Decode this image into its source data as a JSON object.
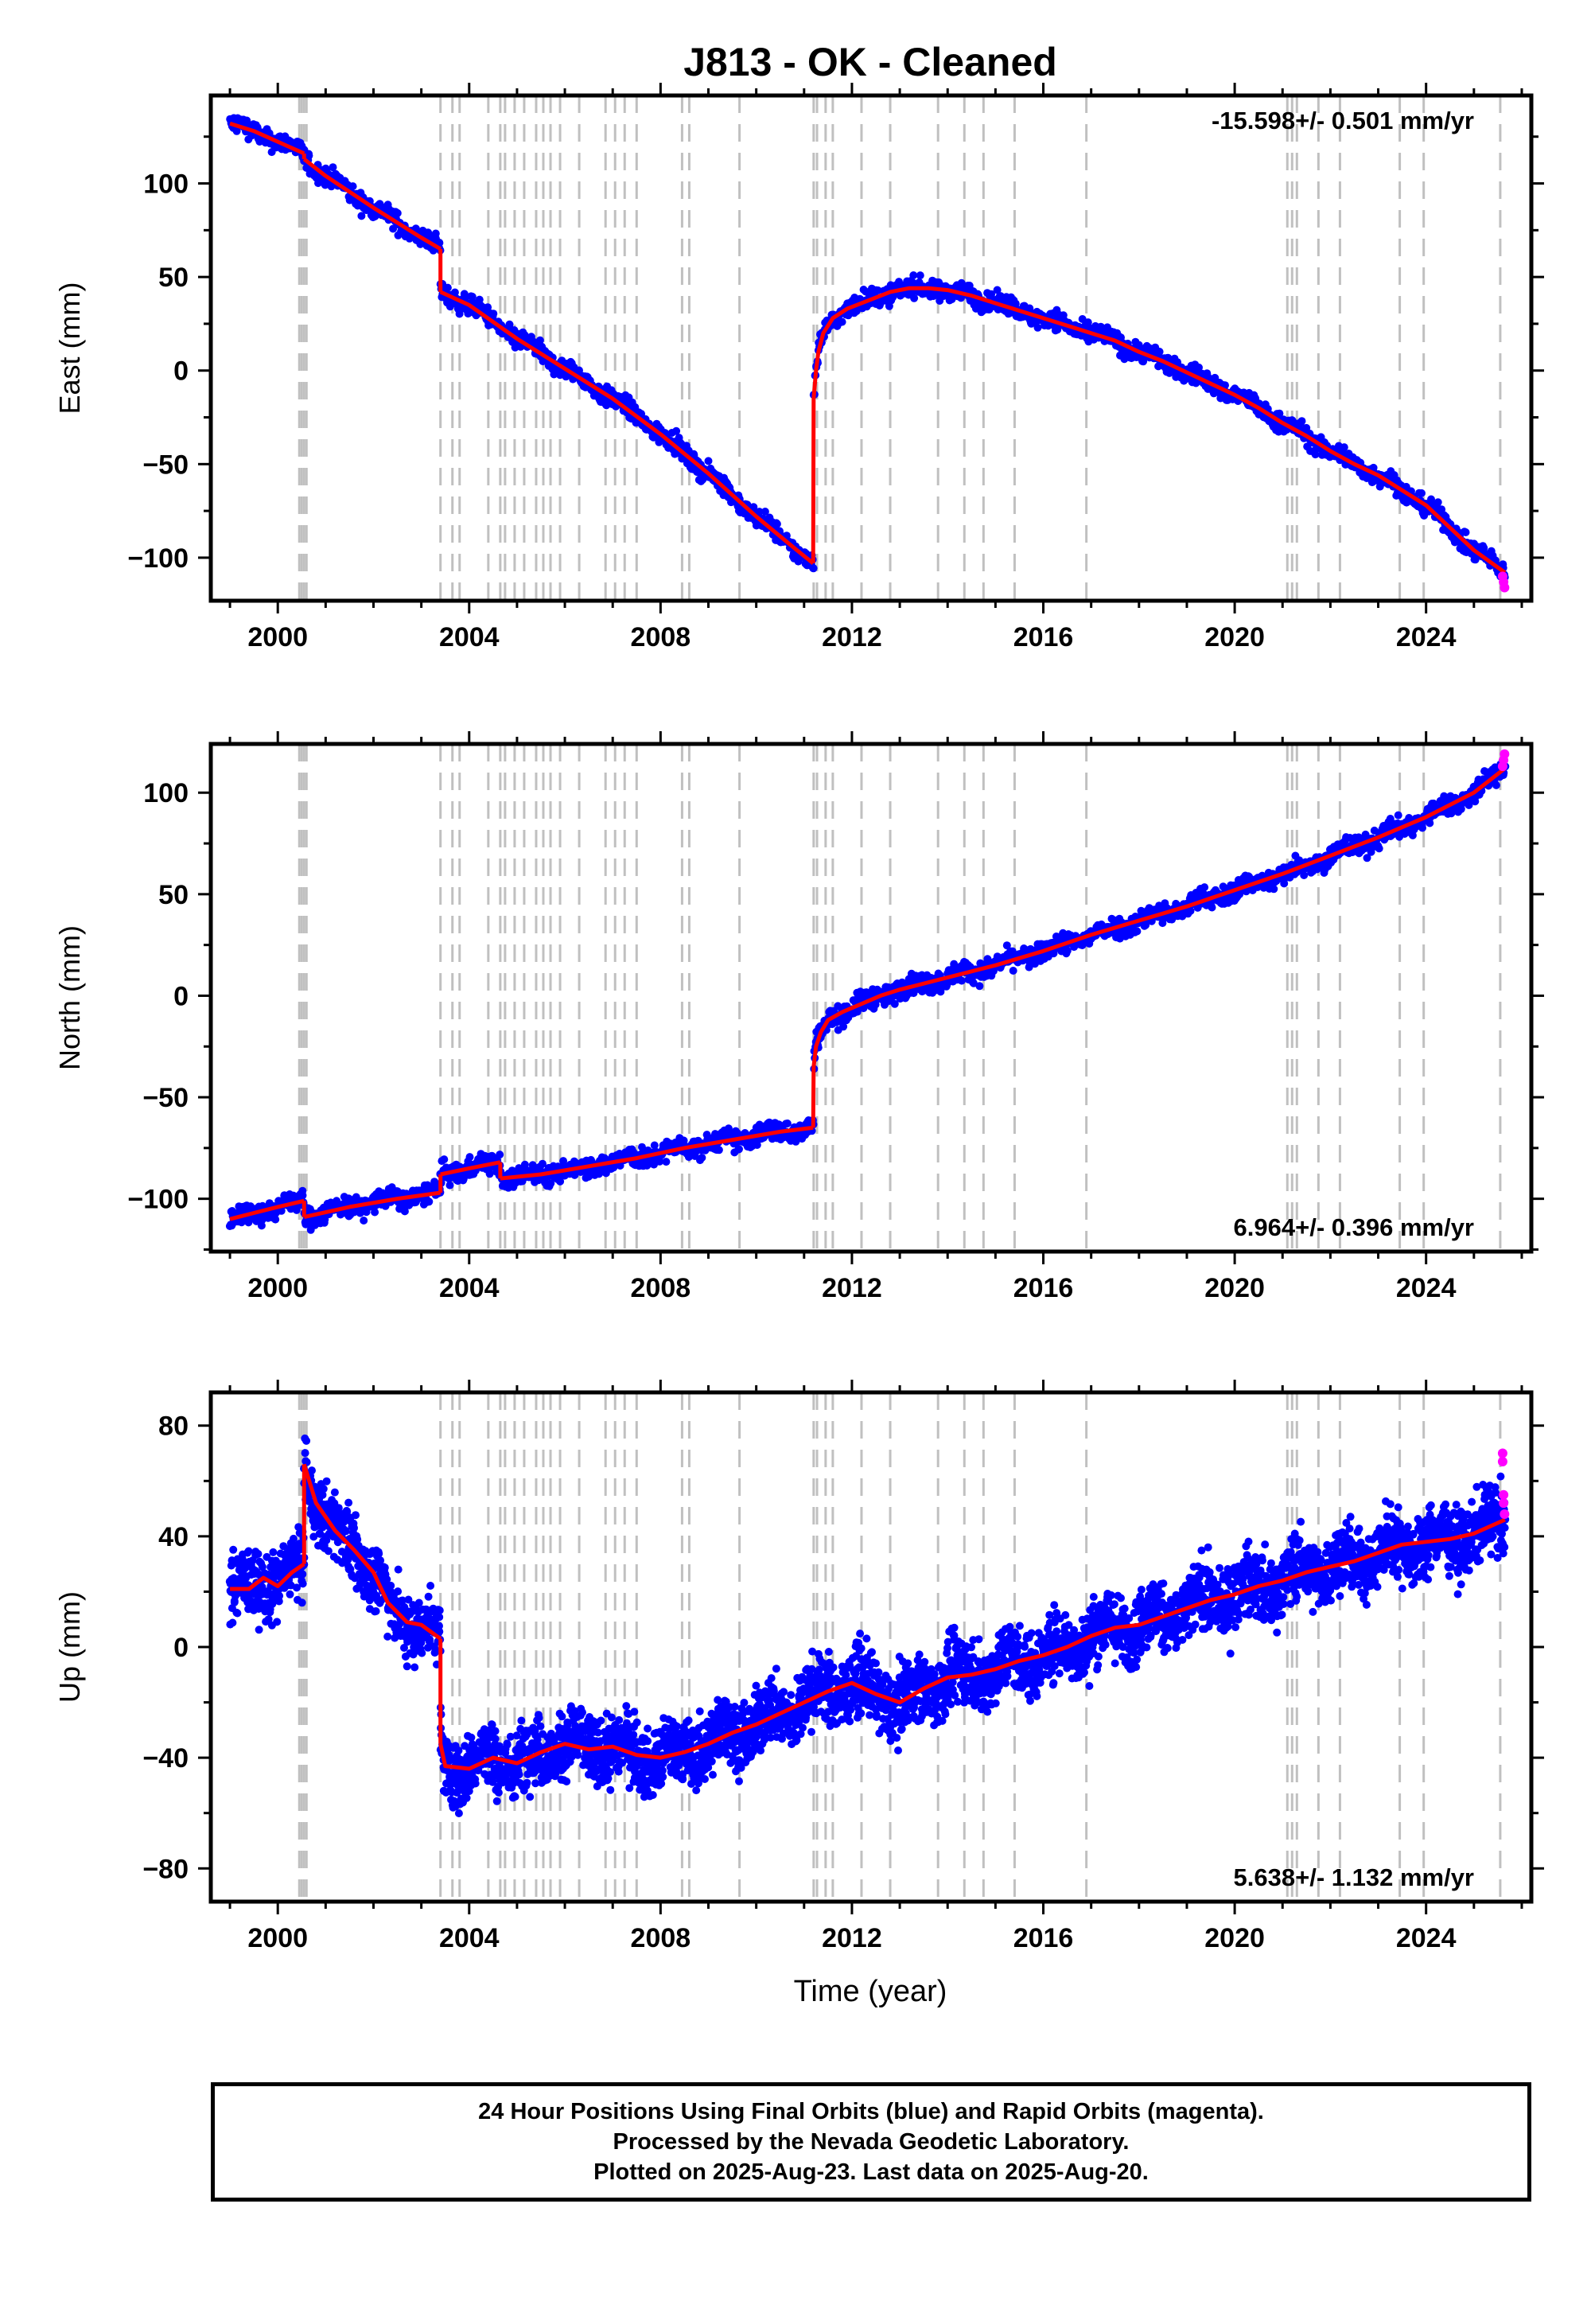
{
  "title": "J813  - OK - Cleaned",
  "xlabel": "Time (year)",
  "colors": {
    "final_orbits": "#0000ff",
    "rapid_orbits": "#ff00ff",
    "model": "#ff0000",
    "event_lines": "#c0c0c0"
  },
  "footer": {
    "line1": "24 Hour Positions Using Final Orbits (blue) and Rapid Orbits (magenta).",
    "line2": "Processed by the Nevada Geodetic Laboratory.",
    "line3": "Plotted on 2025-Aug-23. Last data on 2025-Aug-20."
  },
  "chart_data": [
    {
      "type": "scatter",
      "component": "east",
      "ylabel": "East (mm)",
      "rate_label": "-15.598+/- 0.501 mm/yr",
      "xlim": [
        1998.6,
        2026.2
      ],
      "ylim": [
        -123,
        147
      ],
      "xticks": [
        2000,
        2004,
        2008,
        2012,
        2016,
        2020,
        2024
      ],
      "yticks": [
        -100,
        -50,
        0,
        50,
        100
      ],
      "grid": false,
      "event_lines": [
        2000.45,
        2000.5,
        2000.55,
        2000.6,
        2003.4,
        2003.65,
        2003.8,
        2004.4,
        2004.65,
        2004.75,
        2004.95,
        2005.15,
        2005.4,
        2005.55,
        2005.7,
        2005.9,
        2006.3,
        2006.85,
        2007.05,
        2007.25,
        2007.5,
        2008.45,
        2008.6,
        2009.65,
        2011.2,
        2011.27,
        2011.45,
        2011.6,
        2012.2,
        2012.8,
        2013.8,
        2014.35,
        2014.75,
        2015.4,
        2016.9,
        2021.1,
        2021.2,
        2021.3,
        2021.75,
        2022.2,
        2023.45,
        2023.95,
        2025.55
      ],
      "segments": [
        {
          "x": [
            1999.0,
            1999.5,
            2000.2,
            2000.55
          ],
          "y": [
            132,
            128,
            120,
            116
          ]
        },
        {
          "x": [
            2000.55,
            2001.0,
            2002.0,
            2003.0,
            2003.4
          ],
          "y": [
            113,
            104,
            87,
            71,
            65
          ]
        },
        {
          "x": [
            2003.4,
            2004.0,
            2005.0,
            2006.0,
            2007.0,
            2008.0,
            2009.0,
            2010.0,
            2010.8,
            2011.19
          ],
          "y": [
            42,
            35,
            17,
            1,
            -15,
            -34,
            -55,
            -78,
            -95,
            -103
          ]
        },
        {
          "x": [
            2011.19,
            2011.2,
            2011.25,
            2011.3,
            2011.4,
            2011.6,
            2011.9,
            2012.3,
            2012.8,
            2013.2,
            2013.6,
            2014.0,
            2014.5,
            2015.0,
            2015.5,
            2016.0,
            2016.5,
            2017.0,
            2017.5,
            2018.0,
            2018.5,
            2019.0,
            2019.5,
            2020.0,
            2020.5,
            2021.0,
            2021.5,
            2022.0,
            2022.5,
            2023.0,
            2023.5,
            2024.0,
            2024.5,
            2025.0,
            2025.65
          ],
          "y": [
            -103,
            -15,
            0,
            10,
            20,
            28,
            33,
            37,
            42,
            44,
            44,
            43,
            40,
            36,
            32,
            28,
            24,
            20,
            16,
            10,
            5,
            -1,
            -7,
            -13,
            -20,
            -28,
            -35,
            -43,
            -50,
            -56,
            -64,
            -72,
            -84,
            -96,
            -108
          ]
        }
      ],
      "scatter_spread": 2.5,
      "rapid_orbits": {
        "x": [
          2025.6,
          2025.62,
          2025.64
        ],
        "y": [
          -110,
          -113,
          -116
        ]
      }
    },
    {
      "type": "scatter",
      "component": "north",
      "ylabel": "North (mm)",
      "rate_label": "6.964+/- 0.396 mm/yr",
      "xlim": [
        1998.6,
        2026.2
      ],
      "ylim": [
        -126,
        124
      ],
      "xticks": [
        2000,
        2004,
        2008,
        2012,
        2016,
        2020,
        2024
      ],
      "yticks": [
        -100,
        -50,
        0,
        50,
        100
      ],
      "grid": false,
      "event_lines": [
        2000.45,
        2000.5,
        2000.55,
        2000.6,
        2003.4,
        2003.65,
        2003.8,
        2004.4,
        2004.65,
        2004.75,
        2004.95,
        2005.15,
        2005.4,
        2005.55,
        2005.7,
        2005.9,
        2006.3,
        2006.85,
        2007.05,
        2007.25,
        2007.5,
        2008.45,
        2008.6,
        2009.65,
        2011.2,
        2011.27,
        2011.45,
        2011.6,
        2012.2,
        2012.8,
        2013.8,
        2014.35,
        2014.75,
        2015.4,
        2016.9,
        2021.1,
        2021.2,
        2021.3,
        2021.75,
        2022.2,
        2023.45,
        2023.95,
        2025.55
      ],
      "segments": [
        {
          "x": [
            1999.0,
            1999.5,
            2000.0,
            2000.55
          ],
          "y": [
            -110,
            -107,
            -104,
            -101
          ]
        },
        {
          "x": [
            2000.55,
            2001.5,
            2002.5,
            2003.4
          ],
          "y": [
            -109,
            -104,
            -100,
            -97
          ]
        },
        {
          "x": [
            2003.4,
            2004.0,
            2004.65
          ],
          "y": [
            -88,
            -85,
            -82
          ]
        },
        {
          "x": [
            2004.65,
            2005.5,
            2006.5,
            2007.5,
            2008.5,
            2009.5,
            2010.5,
            2011.19
          ],
          "y": [
            -90,
            -88,
            -84,
            -80,
            -75,
            -71,
            -67,
            -65
          ]
        },
        {
          "x": [
            2011.19,
            2011.2,
            2011.25,
            2011.35,
            2011.5,
            2011.8,
            2012.2,
            2012.6,
            2013.0,
            2014.0,
            2015.0,
            2016.0,
            2017.0,
            2018.0,
            2019.0,
            2020.0,
            2021.0,
            2022.0,
            2023.0,
            2024.0,
            2025.0,
            2025.65
          ],
          "y": [
            -65,
            -35,
            -25,
            -18,
            -12,
            -8,
            -4,
            0,
            3,
            9,
            15,
            22,
            30,
            37,
            44,
            52,
            60,
            69,
            78,
            88,
            100,
            112
          ]
        }
      ],
      "scatter_spread": 2.5,
      "rapid_orbits": {
        "x": [
          2025.6,
          2025.62,
          2025.64
        ],
        "y": [
          113,
          116,
          119
        ]
      }
    },
    {
      "type": "scatter",
      "component": "up",
      "ylabel": "Up (mm)",
      "rate_label": "5.638+/- 1.132 mm/yr",
      "xlim": [
        1998.6,
        2026.2
      ],
      "ylim": [
        -92,
        92
      ],
      "xticks": [
        2000,
        2004,
        2008,
        2012,
        2016,
        2020,
        2024
      ],
      "yticks": [
        -80,
        -40,
        0,
        40,
        80
      ],
      "grid": false,
      "event_lines": [
        2000.45,
        2000.5,
        2000.55,
        2000.6,
        2003.4,
        2003.65,
        2003.8,
        2004.4,
        2004.65,
        2004.75,
        2004.95,
        2005.15,
        2005.4,
        2005.55,
        2005.7,
        2005.9,
        2006.3,
        2006.85,
        2007.05,
        2007.25,
        2007.5,
        2008.45,
        2008.6,
        2009.65,
        2011.2,
        2011.27,
        2011.45,
        2011.6,
        2012.2,
        2012.8,
        2013.8,
        2014.35,
        2014.75,
        2015.4,
        2016.9,
        2021.1,
        2021.2,
        2021.3,
        2021.75,
        2022.2,
        2023.45,
        2023.95,
        2025.55
      ],
      "segments": [
        {
          "x": [
            1999.0,
            1999.4,
            1999.7,
            2000.0,
            2000.3,
            2000.55
          ],
          "y": [
            21,
            21,
            25,
            22,
            27,
            30
          ]
        },
        {
          "x": [
            2000.55,
            2000.8,
            2001.2,
            2001.6,
            2002.0,
            2002.3,
            2002.7,
            2003.0,
            2003.4
          ],
          "y": [
            66,
            52,
            42,
            35,
            27,
            16,
            9,
            8,
            3
          ]
        },
        {
          "x": [
            2003.4,
            2003.5,
            2004.0,
            2004.5,
            2005.0,
            2005.5,
            2006.0,
            2006.5,
            2007.0,
            2007.5,
            2008.0,
            2008.5,
            2009.0,
            2009.5,
            2010.0,
            2010.5,
            2011.0,
            2011.5,
            2012.0,
            2012.5,
            2013.0,
            2013.5,
            2014.0,
            2014.5,
            2015.0,
            2015.5,
            2016.0,
            2016.5,
            2017.0,
            2017.5,
            2018.0,
            2018.5,
            2019.0,
            2019.5,
            2020.0,
            2020.5,
            2021.0,
            2021.5,
            2022.0,
            2022.5,
            2023.0,
            2023.5,
            2024.0,
            2024.5,
            2025.0,
            2025.65
          ],
          "y": [
            -35,
            -43,
            -44,
            -40,
            -42,
            -38,
            -35,
            -37,
            -36,
            -39,
            -40,
            -38,
            -35,
            -31,
            -28,
            -24,
            -20,
            -16,
            -13,
            -17,
            -20,
            -15,
            -11,
            -10,
            -8,
            -5,
            -3,
            0,
            4,
            7,
            8,
            11,
            14,
            17,
            19,
            22,
            24,
            27,
            29,
            31,
            34,
            37,
            38,
            39,
            41,
            46
          ]
        }
      ],
      "scatter_spread": 6,
      "rapid_orbits": {
        "x": [
          2025.6,
          2025.6,
          2025.62,
          2025.62,
          2025.64
        ],
        "y": [
          70,
          67,
          55,
          52,
          48
        ]
      }
    }
  ]
}
